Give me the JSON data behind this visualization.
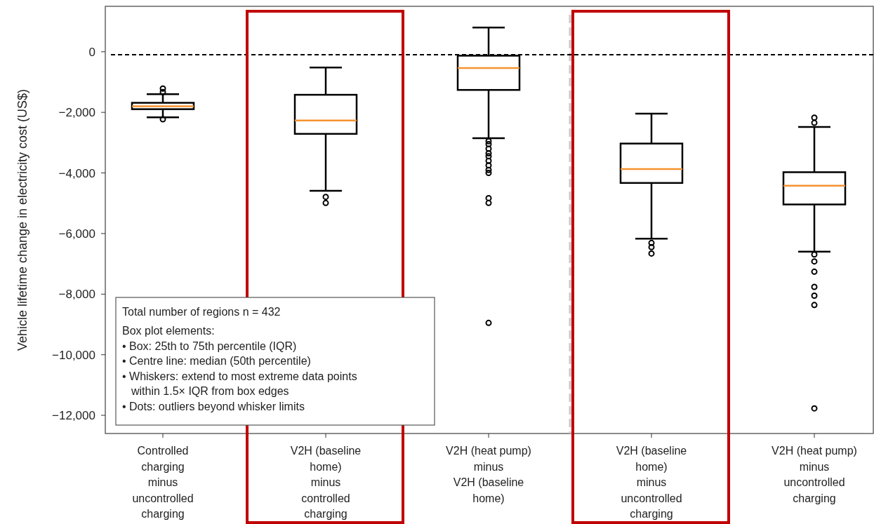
{
  "chart_data": {
    "type": "box",
    "ylabel": "Vehicle lifetime change in electricity cost (US$)",
    "categories": [
      "Controlled\ncharging\nminus\nuncontrolled\ncharging",
      "V2H (baseline\nhome)\nminus\ncontrolled\ncharging",
      "V2H (heat pump)\nminus\nV2H (baseline\nhome)",
      "V2H (baseline\nhome)\nminus\nuncontrolled\ncharging",
      "V2H (heat pump)\nminus\nuncontrolled\ncharging"
    ],
    "boxes": [
      {
        "low": -2165,
        "q1": -1895,
        "median": -1800,
        "q3": -1685,
        "high": -1400,
        "outliers": [
          -1215,
          -1330,
          -2230
        ]
      },
      {
        "low": -4590,
        "q1": -2710,
        "median": -2270,
        "q3": -1420,
        "high": -520,
        "outliers": [
          -4790,
          -4990
        ]
      },
      {
        "low": -2850,
        "q1": -1260,
        "median": -535,
        "q3": -130,
        "high": 800,
        "outliers": [
          -2950,
          -3050,
          -3200,
          -3350,
          -3450,
          -3600,
          -3750,
          -3900,
          -4000,
          -4830,
          -4990,
          -8950
        ]
      },
      {
        "low": -6170,
        "q1": -4330,
        "median": -3870,
        "q3": -3030,
        "high": -2040,
        "outliers": [
          -6310,
          -6450,
          -6660
        ]
      },
      {
        "low": -6595,
        "q1": -5040,
        "median": -4420,
        "q3": -3975,
        "high": -2485,
        "outliers": [
          -2175,
          -2345,
          -6690,
          -6920,
          -7260,
          -7760,
          -8050,
          -8360,
          -11770
        ]
      }
    ],
    "color": "#000000",
    "ylim": [
      -12600,
      1500
    ],
    "yticks": [
      {
        "value": 0,
        "label": "0"
      },
      {
        "value": -2000,
        "label": "−2,000"
      },
      {
        "value": -4000,
        "label": "−4,000"
      },
      {
        "value": -6000,
        "label": "−6,000"
      },
      {
        "value": -8000,
        "label": "−8,000"
      },
      {
        "value": -10000,
        "label": "−10,000"
      },
      {
        "value": -12000,
        "label": "−12,000"
      }
    ],
    "ref_lines": [
      {
        "axis": "y",
        "value": -100,
        "color": "#000000",
        "line_style": "dashed"
      }
    ],
    "annotations": [
      "Total number of regions n = 432",
      "Box plot elements:",
      "• Box: 25th to 75th percentile (IQR)",
      "• Centre line: median (50th percentile)",
      "• Whiskers: extend to most extreme data points\nwithin 1.5× IQR from box edges",
      "• Dots: outliers beyond whisker limits"
    ],
    "grid": false,
    "marker": "circle"
  }
}
